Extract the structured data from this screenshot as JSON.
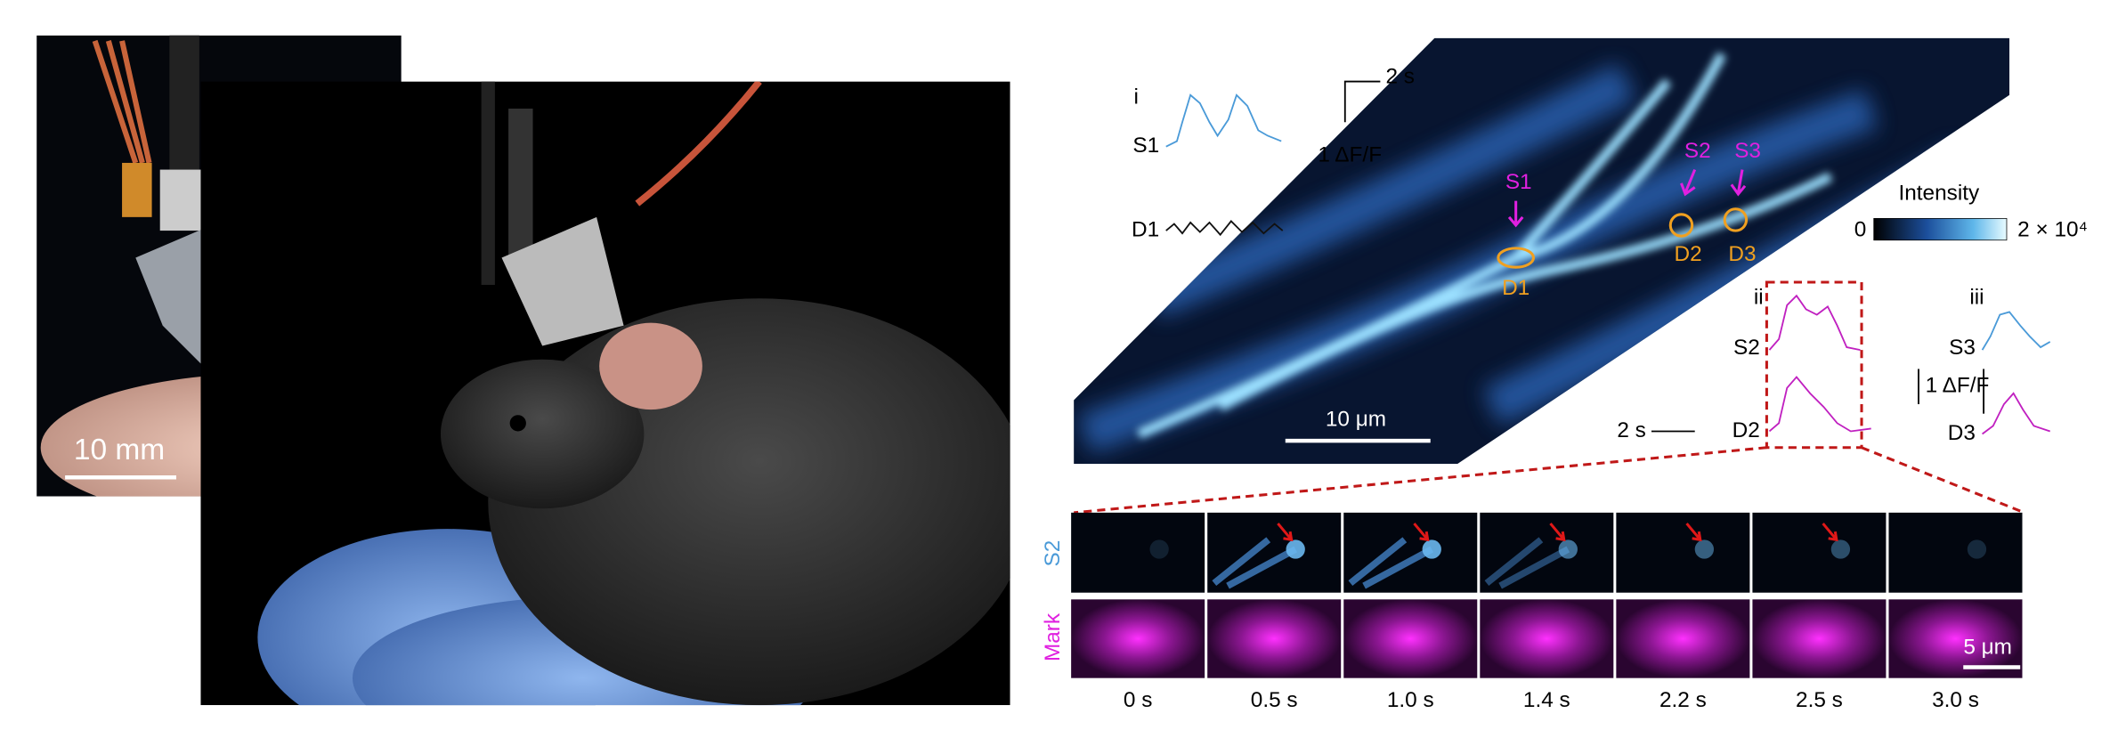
{
  "photo": {
    "scale_label": "10 mm"
  },
  "imaging": {
    "labels": {
      "s1": "S1",
      "s2": "S2",
      "s3": "S3",
      "d1": "D1",
      "d2": "D2",
      "d3": "D3"
    },
    "scale_label": "10 μm",
    "colorbar": {
      "title": "Intensity",
      "min_label": "0",
      "max_label": "2 × 10⁴"
    }
  },
  "traces": {
    "i": {
      "label": "i",
      "rows": [
        "S1",
        "D1"
      ],
      "time_scale": "2 s",
      "amp_scale": "1 ΔF/F"
    },
    "ii": {
      "label": "ii",
      "rows": [
        "S2",
        "D2"
      ],
      "time_scale": "2 s"
    },
    "iii": {
      "label": "iii",
      "rows": [
        "S3",
        "D3"
      ],
      "amp_scale": "1 ΔF/F"
    }
  },
  "timelapse": {
    "row_labels": [
      "S2",
      "Mark"
    ],
    "scale_label": "5 μm",
    "times": [
      "0 s",
      "0.5 s",
      "1.0 s",
      "1.4 s",
      "2.2 s",
      "2.5 s",
      "3.0 s"
    ]
  }
}
